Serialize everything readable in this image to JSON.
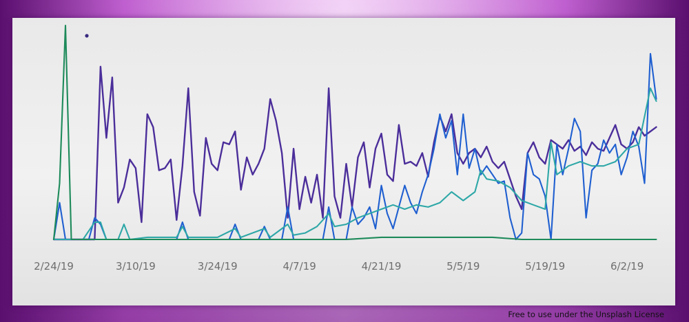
{
  "license_text": "Free to use under the Unsplash License",
  "chart_data": {
    "type": "line",
    "xlabel": "",
    "ylabel": "",
    "xlim": [
      "2019-02-24",
      "2019-06-10"
    ],
    "ylim": [
      0,
      100
    ],
    "grid": false,
    "x_ticks": [
      "2/24/19",
      "3/10/19",
      "3/24/19",
      "4/7/19",
      "4/21/19",
      "5/5/19",
      "5/19/19",
      "6/2/19"
    ],
    "x_tick_dates": [
      "2019-02-24",
      "2019-03-10",
      "2019-03-24",
      "2019-04-07",
      "2019-04-21",
      "2019-05-05",
      "2019-05-19",
      "2019-06-02"
    ],
    "series_colors": [
      "#4b2e9a",
      "#1f5fd0",
      "#2ea7a7",
      "#1d8a5a"
    ],
    "series": [
      {
        "color": "#4b2e9a",
        "points": [
          [
            "2019-02-24",
            0
          ],
          [
            "2019-02-26",
            0
          ],
          [
            "2019-03-01",
            0
          ],
          [
            "2019-03-03",
            0
          ],
          [
            "2019-03-04",
            80
          ],
          [
            "2019-03-05",
            47
          ],
          [
            "2019-03-06",
            75
          ],
          [
            "2019-03-07",
            17
          ],
          [
            "2019-03-08",
            24
          ],
          [
            "2019-03-09",
            37
          ],
          [
            "2019-03-10",
            33
          ],
          [
            "2019-03-11",
            8
          ],
          [
            "2019-03-12",
            58
          ],
          [
            "2019-03-13",
            52
          ],
          [
            "2019-03-14",
            32
          ],
          [
            "2019-03-15",
            33
          ],
          [
            "2019-03-16",
            37
          ],
          [
            "2019-03-17",
            9
          ],
          [
            "2019-03-18",
            34
          ],
          [
            "2019-03-19",
            70
          ],
          [
            "2019-03-20",
            22
          ],
          [
            "2019-03-21",
            11
          ],
          [
            "2019-03-22",
            47
          ],
          [
            "2019-03-23",
            35
          ],
          [
            "2019-03-24",
            32
          ],
          [
            "2019-03-25",
            45
          ],
          [
            "2019-03-26",
            44
          ],
          [
            "2019-03-27",
            50
          ],
          [
            "2019-03-28",
            23
          ],
          [
            "2019-03-29",
            38
          ],
          [
            "2019-03-30",
            30
          ],
          [
            "2019-03-31",
            35
          ],
          [
            "2019-04-01",
            42
          ],
          [
            "2019-04-02",
            65
          ],
          [
            "2019-04-03",
            55
          ],
          [
            "2019-04-04",
            40
          ],
          [
            "2019-04-05",
            10
          ],
          [
            "2019-04-06",
            42
          ],
          [
            "2019-04-07",
            14
          ],
          [
            "2019-04-08",
            29
          ],
          [
            "2019-04-09",
            17
          ],
          [
            "2019-04-10",
            30
          ],
          [
            "2019-04-11",
            10
          ],
          [
            "2019-04-12",
            70
          ],
          [
            "2019-04-13",
            20
          ],
          [
            "2019-04-14",
            10
          ],
          [
            "2019-04-15",
            35
          ],
          [
            "2019-04-16",
            15
          ],
          [
            "2019-04-17",
            38
          ],
          [
            "2019-04-18",
            45
          ],
          [
            "2019-04-19",
            24
          ],
          [
            "2019-04-20",
            42
          ],
          [
            "2019-04-21",
            49
          ],
          [
            "2019-04-22",
            30
          ],
          [
            "2019-04-23",
            27
          ],
          [
            "2019-04-24",
            53
          ],
          [
            "2019-04-25",
            35
          ],
          [
            "2019-04-26",
            36
          ],
          [
            "2019-04-27",
            34
          ],
          [
            "2019-04-28",
            40
          ],
          [
            "2019-04-29",
            29
          ],
          [
            "2019-04-30",
            45
          ],
          [
            "2019-05-01",
            57
          ],
          [
            "2019-05-02",
            50
          ],
          [
            "2019-05-03",
            58
          ],
          [
            "2019-05-04",
            40
          ],
          [
            "2019-05-05",
            35
          ],
          [
            "2019-05-06",
            40
          ],
          [
            "2019-05-07",
            42
          ],
          [
            "2019-05-08",
            38
          ],
          [
            "2019-05-09",
            43
          ],
          [
            "2019-05-10",
            36
          ],
          [
            "2019-05-11",
            33
          ],
          [
            "2019-05-12",
            36
          ],
          [
            "2019-05-13",
            28
          ],
          [
            "2019-05-14",
            20
          ],
          [
            "2019-05-15",
            14
          ],
          [
            "2019-05-16",
            40
          ],
          [
            "2019-05-17",
            45
          ],
          [
            "2019-05-18",
            38
          ],
          [
            "2019-05-19",
            35
          ],
          [
            "2019-05-20",
            46
          ],
          [
            "2019-05-21",
            44
          ],
          [
            "2019-05-22",
            42
          ],
          [
            "2019-05-23",
            46
          ],
          [
            "2019-05-24",
            41
          ],
          [
            "2019-05-25",
            43
          ],
          [
            "2019-05-26",
            39
          ],
          [
            "2019-05-27",
            45
          ],
          [
            "2019-05-28",
            42
          ],
          [
            "2019-05-29",
            41
          ],
          [
            "2019-05-30",
            47
          ],
          [
            "2019-05-31",
            53
          ],
          [
            "2019-06-01",
            44
          ],
          [
            "2019-06-02",
            42
          ],
          [
            "2019-06-03",
            45
          ],
          [
            "2019-06-04",
            52
          ],
          [
            "2019-06-05",
            48
          ],
          [
            "2019-06-06",
            50
          ],
          [
            "2019-06-07",
            52
          ]
        ]
      },
      {
        "color": "#1f5fd0",
        "points": [
          [
            "2019-02-24",
            0
          ],
          [
            "2019-02-25",
            17
          ],
          [
            "2019-02-26",
            0
          ],
          [
            "2019-02-27",
            0
          ],
          [
            "2019-03-01",
            0
          ],
          [
            "2019-03-02",
            0
          ],
          [
            "2019-03-03",
            10
          ],
          [
            "2019-03-04",
            7
          ],
          [
            "2019-03-05",
            0
          ],
          [
            "2019-03-06",
            0
          ],
          [
            "2019-03-07",
            0
          ],
          [
            "2019-03-08",
            0
          ],
          [
            "2019-03-10",
            0
          ],
          [
            "2019-03-14",
            0
          ],
          [
            "2019-03-17",
            0
          ],
          [
            "2019-03-18",
            8
          ],
          [
            "2019-03-19",
            0
          ],
          [
            "2019-03-22",
            0
          ],
          [
            "2019-03-24",
            0
          ],
          [
            "2019-03-26",
            0
          ],
          [
            "2019-03-27",
            7
          ],
          [
            "2019-03-28",
            0
          ],
          [
            "2019-03-31",
            0
          ],
          [
            "2019-04-01",
            6
          ],
          [
            "2019-04-02",
            0
          ],
          [
            "2019-04-04",
            0
          ],
          [
            "2019-04-05",
            15
          ],
          [
            "2019-04-06",
            0
          ],
          [
            "2019-04-08",
            0
          ],
          [
            "2019-04-11",
            0
          ],
          [
            "2019-04-12",
            15
          ],
          [
            "2019-04-13",
            0
          ],
          [
            "2019-04-15",
            0
          ],
          [
            "2019-04-16",
            15
          ],
          [
            "2019-04-17",
            7
          ],
          [
            "2019-04-18",
            10
          ],
          [
            "2019-04-19",
            15
          ],
          [
            "2019-04-20",
            5
          ],
          [
            "2019-04-21",
            25
          ],
          [
            "2019-04-22",
            12
          ],
          [
            "2019-04-23",
            5
          ],
          [
            "2019-04-24",
            15
          ],
          [
            "2019-04-25",
            25
          ],
          [
            "2019-04-26",
            17
          ],
          [
            "2019-04-27",
            12
          ],
          [
            "2019-04-28",
            22
          ],
          [
            "2019-04-29",
            30
          ],
          [
            "2019-04-30",
            42
          ],
          [
            "2019-05-01",
            58
          ],
          [
            "2019-05-02",
            47
          ],
          [
            "2019-05-03",
            55
          ],
          [
            "2019-05-04",
            30
          ],
          [
            "2019-05-05",
            58
          ],
          [
            "2019-05-06",
            33
          ],
          [
            "2019-05-07",
            42
          ],
          [
            "2019-05-08",
            30
          ],
          [
            "2019-05-09",
            34
          ],
          [
            "2019-05-10",
            30
          ],
          [
            "2019-05-11",
            26
          ],
          [
            "2019-05-12",
            27
          ],
          [
            "2019-05-13",
            10
          ],
          [
            "2019-05-14",
            0
          ],
          [
            "2019-05-15",
            3
          ],
          [
            "2019-05-16",
            40
          ],
          [
            "2019-05-17",
            30
          ],
          [
            "2019-05-18",
            28
          ],
          [
            "2019-05-19",
            20
          ],
          [
            "2019-05-20",
            0
          ],
          [
            "2019-05-21",
            44
          ],
          [
            "2019-05-22",
            30
          ],
          [
            "2019-05-23",
            42
          ],
          [
            "2019-05-24",
            56
          ],
          [
            "2019-05-25",
            50
          ],
          [
            "2019-05-26",
            10
          ],
          [
            "2019-05-27",
            32
          ],
          [
            "2019-05-28",
            35
          ],
          [
            "2019-05-29",
            46
          ],
          [
            "2019-05-30",
            40
          ],
          [
            "2019-05-31",
            44
          ],
          [
            "2019-06-01",
            30
          ],
          [
            "2019-06-02",
            38
          ],
          [
            "2019-06-03",
            50
          ],
          [
            "2019-06-04",
            43
          ],
          [
            "2019-06-05",
            26
          ],
          [
            "2019-06-06",
            86
          ],
          [
            "2019-06-07",
            65
          ]
        ]
      },
      {
        "color": "#2ea7a7",
        "points": [
          [
            "2019-02-24",
            0
          ],
          [
            "2019-03-01",
            0
          ],
          [
            "2019-03-03",
            8
          ],
          [
            "2019-03-04",
            8
          ],
          [
            "2019-03-05",
            0
          ],
          [
            "2019-03-07",
            0
          ],
          [
            "2019-03-08",
            7
          ],
          [
            "2019-03-09",
            0
          ],
          [
            "2019-03-12",
            1
          ],
          [
            "2019-03-17",
            1
          ],
          [
            "2019-03-18",
            6
          ],
          [
            "2019-03-19",
            1
          ],
          [
            "2019-03-24",
            1
          ],
          [
            "2019-03-27",
            5
          ],
          [
            "2019-03-28",
            1
          ],
          [
            "2019-04-01",
            5
          ],
          [
            "2019-04-02",
            1
          ],
          [
            "2019-04-05",
            7
          ],
          [
            "2019-04-06",
            2
          ],
          [
            "2019-04-08",
            3
          ],
          [
            "2019-04-10",
            6
          ],
          [
            "2019-04-12",
            12
          ],
          [
            "2019-04-13",
            6
          ],
          [
            "2019-04-15",
            7
          ],
          [
            "2019-04-17",
            10
          ],
          [
            "2019-04-19",
            12
          ],
          [
            "2019-04-21",
            14
          ],
          [
            "2019-04-23",
            16
          ],
          [
            "2019-04-25",
            14
          ],
          [
            "2019-04-27",
            16
          ],
          [
            "2019-04-29",
            15
          ],
          [
            "2019-05-01",
            17
          ],
          [
            "2019-05-03",
            22
          ],
          [
            "2019-05-05",
            18
          ],
          [
            "2019-05-07",
            22
          ],
          [
            "2019-05-08",
            32
          ],
          [
            "2019-05-09",
            28
          ],
          [
            "2019-05-11",
            27
          ],
          [
            "2019-05-13",
            24
          ],
          [
            "2019-05-15",
            18
          ],
          [
            "2019-05-17",
            16
          ],
          [
            "2019-05-19",
            14
          ],
          [
            "2019-05-20",
            45
          ],
          [
            "2019-05-21",
            30
          ],
          [
            "2019-05-23",
            34
          ],
          [
            "2019-05-25",
            36
          ],
          [
            "2019-05-27",
            34
          ],
          [
            "2019-05-29",
            34
          ],
          [
            "2019-05-31",
            36
          ],
          [
            "2019-06-02",
            42
          ],
          [
            "2019-06-04",
            44
          ],
          [
            "2019-06-06",
            70
          ],
          [
            "2019-06-07",
            64
          ]
        ]
      },
      {
        "color": "#1d8a5a",
        "points": [
          [
            "2019-02-24",
            0
          ],
          [
            "2019-02-25",
            26
          ],
          [
            "2019-02-26",
            99
          ],
          [
            "2019-02-27",
            0
          ],
          [
            "2019-03-02",
            0
          ],
          [
            "2019-03-10",
            0
          ],
          [
            "2019-03-24",
            0
          ],
          [
            "2019-04-07",
            0
          ],
          [
            "2019-04-15",
            0
          ],
          [
            "2019-04-21",
            1
          ],
          [
            "2019-04-25",
            1
          ],
          [
            "2019-05-01",
            1
          ],
          [
            "2019-05-05",
            1
          ],
          [
            "2019-05-10",
            1
          ],
          [
            "2019-05-15",
            0
          ],
          [
            "2019-05-19",
            0
          ],
          [
            "2019-05-23",
            0
          ],
          [
            "2019-05-27",
            0
          ],
          [
            "2019-06-02",
            0
          ],
          [
            "2019-06-07",
            0
          ]
        ]
      }
    ]
  }
}
